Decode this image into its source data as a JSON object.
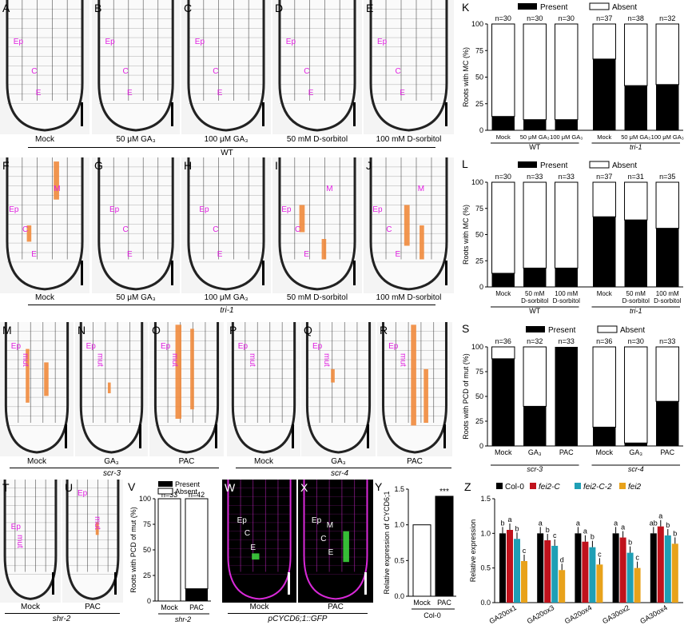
{
  "panels": {
    "row1": [
      "A",
      "B",
      "C",
      "D",
      "E"
    ],
    "row2": [
      "F",
      "G",
      "H",
      "I",
      "J"
    ],
    "row3": [
      "M",
      "N",
      "O",
      "P",
      "Q",
      "R"
    ],
    "row4": [
      "T",
      "U",
      "V",
      "W",
      "X",
      "Y"
    ],
    "charts": [
      "K",
      "L",
      "S",
      "Z"
    ]
  },
  "cell_labels": {
    "ep": "Ep",
    "c": "C",
    "e": "E",
    "m": "M",
    "mut": "mut"
  },
  "row1_captions": [
    "Mock",
    "50 μM GA₃",
    "100 μM GA₃",
    "50 mM D-sorbitol",
    "100 mM D-sorbitol"
  ],
  "row1_group": "WT",
  "row2_captions": [
    "Mock",
    "50 μM GA₃",
    "100 μM GA₃",
    "50 mM D-sorbitol",
    "100 mM D-sorbitol"
  ],
  "row2_group": "tri-1",
  "row3_captions": [
    "Mock",
    "GA₃",
    "PAC",
    "Mock",
    "GA₃",
    "PAC"
  ],
  "row3_groups": [
    "scr-3",
    "scr-4"
  ],
  "row4_captions": {
    "t": "Mock",
    "u": "PAC",
    "tu_group": "shr-2",
    "w": "Mock",
    "x": "PAC",
    "wx_group": "pCYCD6;1::GFP"
  },
  "chart_data": [
    {
      "panel": "K",
      "type": "bar",
      "stacked": true,
      "ylabel": "Roots with MC (%)",
      "ylim": [
        0,
        100
      ],
      "yticks": [
        0,
        25,
        50,
        75,
        100
      ],
      "legend": [
        "Present",
        "Absent"
      ],
      "categories": [
        "Mock",
        "50 μM GA₃",
        "100 μM GA₃",
        "Mock",
        "50 μM GA₃",
        "100 μM GA₃"
      ],
      "groups": [
        "WT",
        "tri-1"
      ],
      "n": [
        "n=30",
        "n=30",
        "n=30",
        "n=37",
        "n=38",
        "n=32"
      ],
      "present": [
        13,
        10,
        10,
        67,
        42,
        43
      ]
    },
    {
      "panel": "L",
      "type": "bar",
      "stacked": true,
      "ylabel": "Roots with MC (%)",
      "ylim": [
        0,
        100
      ],
      "yticks": [
        0,
        25,
        50,
        75,
        100
      ],
      "legend": [
        "Present",
        "Absent"
      ],
      "categories": [
        "Mock",
        "50 mM D-sorbitol",
        "100 mM D-sorbitol",
        "Mock",
        "50 mM D-sorbitol",
        "100 mM D-sorbitol"
      ],
      "groups": [
        "WT",
        "tri-1"
      ],
      "n": [
        "n=30",
        "n=33",
        "n=33",
        "n=37",
        "n=31",
        "n=35"
      ],
      "present": [
        13,
        18,
        18,
        67,
        64,
        56
      ]
    },
    {
      "panel": "S",
      "type": "bar",
      "stacked": true,
      "ylabel": "Roots with PCD of mut (%)",
      "ylim": [
        0,
        100
      ],
      "yticks": [
        0,
        25,
        50,
        75,
        100
      ],
      "legend": [
        "Present",
        "Absent"
      ],
      "categories": [
        "Mock",
        "GA₃",
        "PAC",
        "Mock",
        "GA₃",
        "PAC"
      ],
      "groups": [
        "scr-3",
        "scr-4"
      ],
      "n": [
        "n=36",
        "n=32",
        "n=33",
        "n=36",
        "n=30",
        "n=33"
      ],
      "present": [
        88,
        40,
        100,
        19,
        3,
        45
      ]
    },
    {
      "panel": "V",
      "type": "bar",
      "stacked": true,
      "ylabel": "Roots with PCD of mut (%)",
      "ylim": [
        0,
        100
      ],
      "yticks": [
        0,
        25,
        50,
        75,
        100
      ],
      "legend": [
        "Present",
        "Absent"
      ],
      "categories": [
        "Mock",
        "PAC"
      ],
      "groups": [
        "shr-2"
      ],
      "n": [
        "n=33",
        "n=42"
      ],
      "present": [
        0,
        12
      ]
    },
    {
      "panel": "Y",
      "type": "bar",
      "ylabel": "Relative expression of CYCD6;1",
      "ylim": [
        0,
        1.5
      ],
      "yticks": [
        0,
        0.5,
        1.0,
        1.5
      ],
      "categories": [
        "Mock",
        "PAC"
      ],
      "group": "Col-0",
      "values": [
        1.0,
        1.4
      ],
      "annotation": "***"
    },
    {
      "panel": "Z",
      "type": "bar",
      "ylabel": "Relative expression",
      "ylim": [
        0,
        1.5
      ],
      "yticks": [
        0,
        0.5,
        1.0,
        1.5
      ],
      "categories": [
        "GA20ox1",
        "GA20ox3",
        "GA20ox4",
        "GA30ox2",
        "GA30ox4"
      ],
      "series": [
        {
          "name": "Col-0",
          "color": "#000000",
          "values": [
            1.0,
            1.0,
            1.0,
            1.0,
            1.0
          ],
          "letters": [
            "b",
            "a",
            "a",
            "a",
            "ab"
          ]
        },
        {
          "name": "fei2-C",
          "color": "#c0121c",
          "values": [
            1.05,
            0.9,
            0.88,
            0.94,
            1.1
          ],
          "letters": [
            "a",
            "b",
            "a",
            "a",
            "a"
          ]
        },
        {
          "name": "fei2-C-2",
          "color": "#1f9fb5",
          "values": [
            0.92,
            0.82,
            0.8,
            0.72,
            0.97
          ],
          "letters": [
            "b",
            "c",
            "b",
            "b",
            "b"
          ]
        },
        {
          "name": "fei2",
          "color": "#e8a21b",
          "values": [
            0.6,
            0.47,
            0.55,
            0.5,
            0.85
          ],
          "letters": [
            "c",
            "d",
            "c",
            "c",
            "b"
          ]
        }
      ]
    }
  ]
}
